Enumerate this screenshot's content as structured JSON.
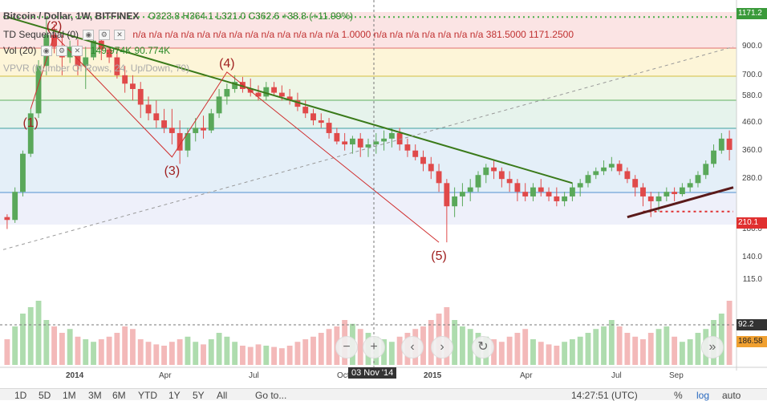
{
  "header": {
    "title": "Bitcoin / Dollar, 1W, BITFINEX",
    "ohlc": "O323.8  H364.1  L321.0  C362.6  +38.8 (+11.99%)",
    "td_label": "TD Sequential (0)",
    "td_values": "n/a  n/a  n/a  n/a  n/a  n/a  n/a  n/a  n/a  n/a  n/a  n/a  n/a  1.0000  n/a  n/a  n/a  n/a  n/a  n/a  n/a  381.5000  1171.2500",
    "vol_label": "Vol (20)",
    "vol_values": "149.974K  90.774K",
    "vpvr_label": "VPVR (Number Of Rows, 24, Up/Down, 70)"
  },
  "price_tags": {
    "top": "1171.2",
    "support": "210.1",
    "current": "92.2",
    "volume": "186.58"
  },
  "crosshair": {
    "x_label": "03 Nov '14"
  },
  "wave_labels": [
    "(1)",
    "(2)",
    "(3)",
    "(4)",
    "(5)"
  ],
  "toolbar": {
    "ranges": [
      "1D",
      "5D",
      "1M",
      "3M",
      "6M",
      "YTD",
      "1Y",
      "5Y",
      "All"
    ],
    "goto": "Go to...",
    "time": "14:27:51 (UTC)",
    "percent": "%",
    "log": "log",
    "auto": "auto"
  },
  "icons": {
    "zoom_out": "minus-icon",
    "zoom_in": "plus-icon",
    "scroll_left": "chevron-left-icon",
    "scroll_right": "chevron-right-icon",
    "reset": "reset-icon",
    "scroll_end": "double-chevron-right-icon"
  },
  "colors": {
    "up": "#5aa85a",
    "down": "#e04a4a",
    "trend": "#3a7a1a",
    "wave": "#d03030",
    "support_line": "#e03030"
  },
  "chart_data": {
    "type": "candlestick",
    "title": "Bitcoin / Dollar, 1W, BITFINEX",
    "x_ticks": [
      "2014",
      "Apr",
      "Jul",
      "Oct",
      "2015",
      "Apr",
      "Jul",
      "Sep"
    ],
    "y_ticks": [
      900,
      700,
      580,
      460,
      360,
      280,
      180,
      140,
      115
    ],
    "y_scale": "log",
    "y_range": [
      80,
      1250
    ],
    "candles": [
      [
        200,
        205,
        180,
        195
      ],
      [
        195,
        260,
        190,
        250
      ],
      [
        250,
        360,
        240,
        350
      ],
      [
        350,
        520,
        340,
        500
      ],
      [
        500,
        800,
        480,
        760
      ],
      [
        760,
        1171,
        700,
        1000
      ],
      [
        1000,
        1100,
        850,
        900
      ],
      [
        900,
        1000,
        700,
        820
      ],
      [
        820,
        950,
        780,
        900
      ],
      [
        900,
        960,
        700,
        760
      ],
      [
        760,
        900,
        620,
        820
      ],
      [
        820,
        1000,
        800,
        950
      ],
      [
        950,
        980,
        800,
        880
      ],
      [
        880,
        900,
        780,
        820
      ],
      [
        820,
        870,
        680,
        700
      ],
      [
        700,
        760,
        600,
        650
      ],
      [
        650,
        700,
        560,
        620
      ],
      [
        620,
        660,
        480,
        540
      ],
      [
        540,
        580,
        470,
        500
      ],
      [
        500,
        560,
        440,
        470
      ],
      [
        470,
        520,
        420,
        440
      ],
      [
        440,
        520,
        380,
        420
      ],
      [
        420,
        470,
        320,
        360
      ],
      [
        360,
        440,
        340,
        420
      ],
      [
        420,
        480,
        390,
        440
      ],
      [
        440,
        490,
        400,
        430
      ],
      [
        430,
        520,
        420,
        500
      ],
      [
        500,
        620,
        480,
        580
      ],
      [
        580,
        650,
        540,
        620
      ],
      [
        620,
        700,
        600,
        660
      ],
      [
        660,
        690,
        600,
        620
      ],
      [
        620,
        680,
        580,
        600
      ],
      [
        600,
        640,
        560,
        580
      ],
      [
        580,
        660,
        560,
        630
      ],
      [
        630,
        660,
        590,
        600
      ],
      [
        600,
        640,
        560,
        580
      ],
      [
        580,
        620,
        540,
        560
      ],
      [
        560,
        600,
        510,
        530
      ],
      [
        530,
        560,
        480,
        500
      ],
      [
        500,
        520,
        450,
        470
      ],
      [
        470,
        500,
        440,
        460
      ],
      [
        460,
        480,
        400,
        420
      ],
      [
        420,
        440,
        380,
        390
      ],
      [
        390,
        420,
        360,
        380
      ],
      [
        380,
        410,
        350,
        400
      ],
      [
        400,
        420,
        340,
        370
      ],
      [
        370,
        400,
        340,
        380
      ],
      [
        380,
        420,
        350,
        390
      ],
      [
        390,
        430,
        360,
        400
      ],
      [
        400,
        440,
        370,
        420
      ],
      [
        420,
        440,
        360,
        380
      ],
      [
        380,
        400,
        340,
        360
      ],
      [
        360,
        380,
        330,
        340
      ],
      [
        340,
        360,
        300,
        320
      ],
      [
        320,
        340,
        280,
        300
      ],
      [
        300,
        320,
        250,
        270
      ],
      [
        270,
        280,
        160,
        220
      ],
      [
        220,
        260,
        200,
        240
      ],
      [
        240,
        270,
        220,
        250
      ],
      [
        250,
        280,
        230,
        260
      ],
      [
        260,
        300,
        250,
        290
      ],
      [
        290,
        320,
        270,
        310
      ],
      [
        310,
        330,
        280,
        300
      ],
      [
        300,
        310,
        260,
        280
      ],
      [
        280,
        300,
        250,
        270
      ],
      [
        270,
        280,
        230,
        250
      ],
      [
        250,
        270,
        230,
        240
      ],
      [
        240,
        270,
        230,
        260
      ],
      [
        260,
        280,
        240,
        250
      ],
      [
        250,
        260,
        230,
        240
      ],
      [
        240,
        260,
        220,
        230
      ],
      [
        230,
        250,
        220,
        240
      ],
      [
        240,
        270,
        230,
        260
      ],
      [
        260,
        280,
        240,
        270
      ],
      [
        270,
        300,
        260,
        290
      ],
      [
        290,
        310,
        280,
        300
      ],
      [
        300,
        330,
        290,
        310
      ],
      [
        310,
        340,
        300,
        320
      ],
      [
        320,
        330,
        290,
        300
      ],
      [
        300,
        310,
        270,
        280
      ],
      [
        280,
        290,
        240,
        260
      ],
      [
        260,
        270,
        220,
        240
      ],
      [
        240,
        250,
        200,
        230
      ],
      [
        230,
        250,
        210,
        240
      ],
      [
        240,
        260,
        230,
        250
      ],
      [
        250,
        260,
        230,
        245
      ],
      [
        245,
        270,
        240,
        260
      ],
      [
        260,
        280,
        250,
        270
      ],
      [
        270,
        300,
        260,
        290
      ],
      [
        290,
        330,
        280,
        320
      ],
      [
        320,
        380,
        310,
        360
      ],
      [
        360,
        420,
        350,
        400
      ],
      [
        400,
        430,
        330,
        362
      ]
    ],
    "volumes": [
      20,
      30,
      40,
      45,
      50,
      35,
      30,
      25,
      28,
      22,
      20,
      18,
      20,
      22,
      25,
      30,
      28,
      20,
      18,
      16,
      15,
      18,
      20,
      22,
      18,
      16,
      20,
      25,
      22,
      18,
      15,
      14,
      16,
      15,
      14,
      13,
      15,
      18,
      20,
      22,
      25,
      28,
      30,
      35,
      32,
      28,
      25,
      22,
      20,
      18,
      22,
      25,
      28,
      30,
      35,
      40,
      45,
      35,
      30,
      28,
      25,
      22,
      20,
      18,
      22,
      25,
      28,
      20,
      18,
      16,
      15,
      18,
      20,
      22,
      25,
      28,
      30,
      35,
      30,
      25,
      22,
      20,
      25,
      28,
      30,
      22,
      18,
      20,
      25,
      28,
      35,
      40,
      50
    ],
    "trendline_resistance": {
      "from_week": 0,
      "to_week": 72
    },
    "support_level": 210.1,
    "wave_points": [
      [
        3,
        520
      ],
      [
        6,
        1000
      ],
      [
        21,
        340
      ],
      [
        28,
        720
      ],
      [
        55,
        160
      ]
    ]
  }
}
